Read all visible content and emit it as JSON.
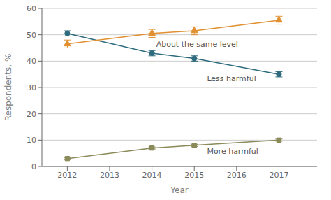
{
  "chart_data": {
    "type": "line",
    "x": [
      2012,
      2014,
      2015,
      2017
    ],
    "series": [
      {
        "color": "#2e6b7e",
        "marker": "circle",
        "values": [
          50.5,
          43.0,
          41.0,
          35.0
        ],
        "yerr": [
          1.0,
          1.0,
          1.0,
          1.0
        ]
      },
      {
        "color": "#e09030",
        "marker": "triangle",
        "values": [
          46.5,
          50.5,
          51.5,
          55.5
        ],
        "yerr": [
          1.5,
          1.5,
          1.5,
          1.5
        ]
      },
      {
        "color": "#8a8a5a",
        "marker": "square",
        "values": [
          3.0,
          7.0,
          8.0,
          10.0
        ],
        "yerr": [
          0.4,
          0.4,
          0.4,
          0.4
        ]
      }
    ],
    "annotations": [
      {
        "text": "Less harmful",
        "x": 2015.3,
        "y": 33.5
      },
      {
        "text": "About the same level",
        "x": 2014.1,
        "y": 46.5
      },
      {
        "text": "More harmful",
        "x": 2015.3,
        "y": 5.8
      }
    ],
    "xlabel": "Year",
    "ylabel": "Respondents, %",
    "xlim": [
      2011.4,
      2017.9
    ],
    "ylim": [
      0,
      60
    ],
    "xticks": [
      2012,
      2013,
      2014,
      2015,
      2016,
      2017
    ],
    "yticks": [
      0,
      10,
      20,
      30,
      40,
      50,
      60
    ],
    "grid": true
  }
}
